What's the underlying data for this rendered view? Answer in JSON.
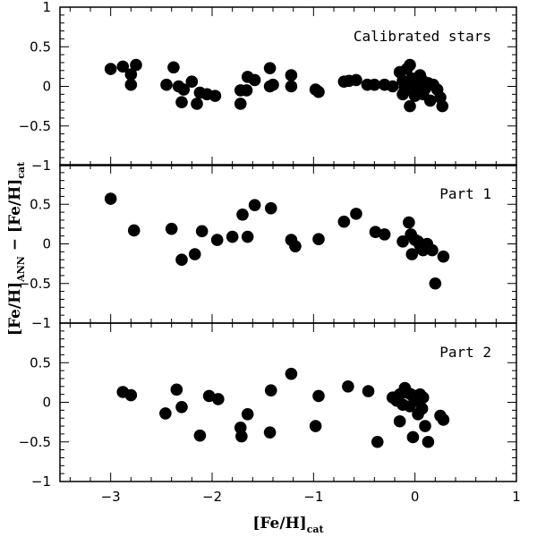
{
  "chart_data": {
    "type": "scatter",
    "xlabel": "[Fe/H]",
    "xlabel_sub": "cat",
    "ylabel_parts": [
      "[Fe/H]",
      "ANN",
      " − [Fe/H]",
      "cat"
    ],
    "xlim": [
      -3.5,
      1
    ],
    "xticks": [
      -3,
      -2,
      -1,
      0,
      1
    ],
    "xtick_labels": [
      "−3",
      "−2",
      "−1",
      "0",
      "1"
    ],
    "ylim": [
      -1,
      1
    ],
    "panels": [
      {
        "label": "Calibrated stars",
        "ytick_labels": [
          "1",
          "0.5",
          "0",
          "−0.5",
          "−1"
        ],
        "points": [
          [
            -3.0,
            0.22
          ],
          [
            -2.88,
            0.25
          ],
          [
            -2.8,
            0.15
          ],
          [
            -2.8,
            0.02
          ],
          [
            -2.75,
            0.27
          ],
          [
            -2.45,
            0.02
          ],
          [
            -2.38,
            0.24
          ],
          [
            -2.33,
            0.0
          ],
          [
            -2.3,
            -0.2
          ],
          [
            -2.28,
            -0.04
          ],
          [
            -2.2,
            0.06
          ],
          [
            -2.15,
            -0.22
          ],
          [
            -2.12,
            -0.08
          ],
          [
            -2.05,
            -0.1
          ],
          [
            -1.97,
            -0.12
          ],
          [
            -1.72,
            -0.22
          ],
          [
            -1.72,
            -0.05
          ],
          [
            -1.66,
            -0.05
          ],
          [
            -1.65,
            0.12
          ],
          [
            -1.58,
            0.08
          ],
          [
            -1.43,
            0.23
          ],
          [
            -1.43,
            0.0
          ],
          [
            -1.4,
            0.02
          ],
          [
            -1.22,
            0.0
          ],
          [
            -1.22,
            0.14
          ],
          [
            -0.98,
            -0.04
          ],
          [
            -0.95,
            -0.07
          ],
          [
            -0.7,
            0.06
          ],
          [
            -0.65,
            0.07
          ],
          [
            -0.58,
            0.08
          ],
          [
            -0.47,
            0.02
          ],
          [
            -0.4,
            0.02
          ],
          [
            -0.3,
            0.02
          ],
          [
            -0.22,
            0.0
          ],
          [
            -0.15,
            0.18
          ],
          [
            -0.12,
            0.07
          ],
          [
            -0.1,
            -0.02
          ],
          [
            -0.08,
            0.22
          ],
          [
            -0.05,
            0.27
          ],
          [
            -0.05,
            -0.25
          ],
          [
            -0.03,
            0.1
          ],
          [
            -0.02,
            -0.06
          ],
          [
            0.0,
            0.05
          ],
          [
            0.0,
            -0.12
          ],
          [
            0.02,
            -0.04
          ],
          [
            0.03,
            0.02
          ],
          [
            0.05,
            0.14
          ],
          [
            0.07,
            0.08
          ],
          [
            0.08,
            -0.1
          ],
          [
            0.1,
            -0.03
          ],
          [
            0.13,
            0.04
          ],
          [
            0.15,
            -0.18
          ],
          [
            0.18,
            0.02
          ],
          [
            0.22,
            -0.04
          ],
          [
            0.25,
            -0.14
          ],
          [
            0.27,
            -0.25
          ],
          [
            -0.02,
            0.0
          ],
          [
            0.05,
            0.12
          ],
          [
            -0.12,
            -0.1
          ],
          [
            0.1,
            0.0
          ]
        ]
      },
      {
        "label": "Part 1",
        "ytick_labels": [
          "",
          "0.5",
          "0",
          "−0.5",
          "−1"
        ],
        "points": [
          [
            -3.0,
            0.57
          ],
          [
            -2.77,
            0.17
          ],
          [
            -2.4,
            0.19
          ],
          [
            -2.3,
            -0.2
          ],
          [
            -2.17,
            -0.13
          ],
          [
            -2.1,
            0.16
          ],
          [
            -1.95,
            0.05
          ],
          [
            -1.8,
            0.09
          ],
          [
            -1.7,
            0.37
          ],
          [
            -1.65,
            0.09
          ],
          [
            -1.58,
            0.49
          ],
          [
            -1.42,
            0.45
          ],
          [
            -1.22,
            0.05
          ],
          [
            -1.18,
            -0.03
          ],
          [
            -0.95,
            0.06
          ],
          [
            -0.7,
            0.28
          ],
          [
            -0.58,
            0.38
          ],
          [
            -0.39,
            0.15
          ],
          [
            -0.3,
            0.12
          ],
          [
            -0.12,
            0.03
          ],
          [
            -0.06,
            0.27
          ],
          [
            -0.04,
            0.12
          ],
          [
            -0.03,
            -0.13
          ],
          [
            0.0,
            0.05
          ],
          [
            0.03,
            0.03
          ],
          [
            0.05,
            -0.02
          ],
          [
            0.08,
            -0.08
          ],
          [
            0.12,
            0.0
          ],
          [
            0.17,
            -0.08
          ],
          [
            0.2,
            -0.5
          ],
          [
            0.28,
            -0.16
          ]
        ]
      },
      {
        "label": "Part 2",
        "ytick_labels": [
          "",
          "0.5",
          "0",
          "−0.5",
          "−1"
        ],
        "points": [
          [
            -2.88,
            0.13
          ],
          [
            -2.8,
            0.09
          ],
          [
            -2.46,
            -0.14
          ],
          [
            -2.35,
            0.16
          ],
          [
            -2.3,
            -0.06
          ],
          [
            -2.12,
            -0.42
          ],
          [
            -2.03,
            0.08
          ],
          [
            -1.94,
            0.04
          ],
          [
            -1.72,
            -0.32
          ],
          [
            -1.71,
            -0.43
          ],
          [
            -1.65,
            -0.15
          ],
          [
            -1.43,
            -0.38
          ],
          [
            -1.42,
            0.15
          ],
          [
            -1.22,
            0.36
          ],
          [
            -0.98,
            -0.3
          ],
          [
            -0.95,
            0.08
          ],
          [
            -0.66,
            0.2
          ],
          [
            -0.46,
            0.14
          ],
          [
            -0.37,
            -0.5
          ],
          [
            -0.22,
            0.06
          ],
          [
            -0.18,
            0.02
          ],
          [
            -0.15,
            0.1
          ],
          [
            -0.12,
            -0.03
          ],
          [
            -0.1,
            0.18
          ],
          [
            -0.07,
            0.12
          ],
          [
            -0.05,
            -0.05
          ],
          [
            -0.04,
            0.1
          ],
          [
            -0.02,
            -0.44
          ],
          [
            0.0,
            0.08
          ],
          [
            0.02,
            0.02
          ],
          [
            0.03,
            -0.15
          ],
          [
            0.05,
            0.1
          ],
          [
            0.07,
            -0.08
          ],
          [
            0.08,
            0.06
          ],
          [
            0.1,
            -0.3
          ],
          [
            0.13,
            -0.5
          ],
          [
            0.25,
            -0.17
          ],
          [
            0.28,
            -0.22
          ],
          [
            -0.15,
            -0.24
          ]
        ]
      }
    ]
  }
}
